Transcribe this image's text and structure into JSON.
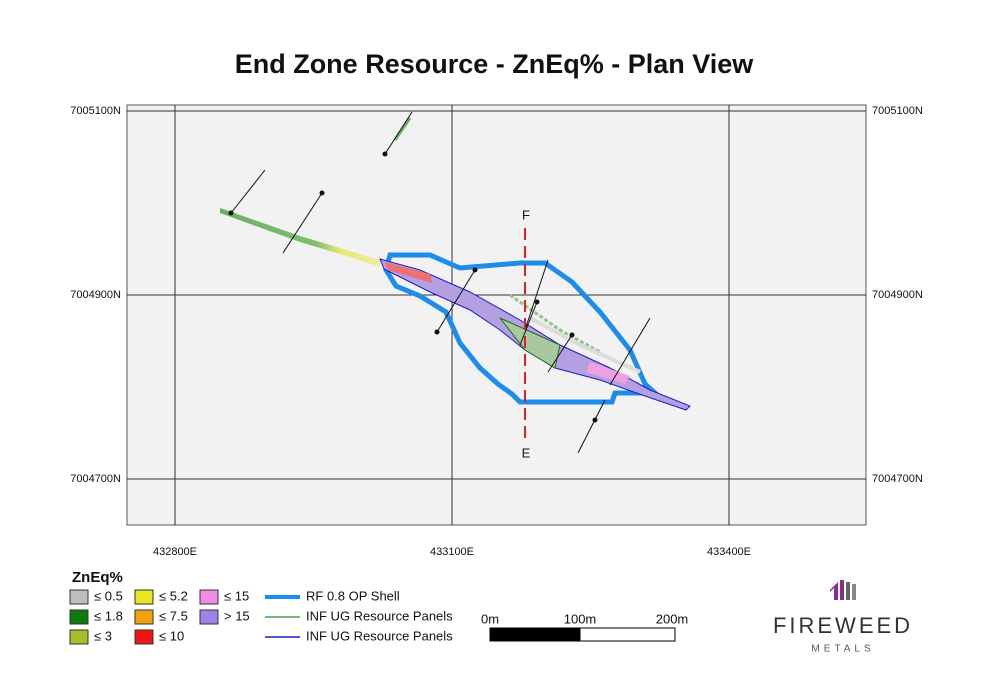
{
  "title": "End Zone Resource - ZnEq% - Plan View",
  "map": {
    "eastings": [
      "432800E",
      "433100E",
      "433400E"
    ],
    "northings": [
      "7005100N",
      "7004900N",
      "7004700N"
    ],
    "section_labels": [
      "F",
      "E"
    ]
  },
  "legend": {
    "title": "ZnEq%",
    "grade_bins": [
      {
        "label": "≤ 0.5",
        "color": "#bdbdbd"
      },
      {
        "label": "≤ 1.8",
        "color": "#0a7d0a"
      },
      {
        "label": "≤ 3",
        "color": "#a8be2c"
      },
      {
        "label": "≤ 5.2",
        "color": "#e8e61e"
      },
      {
        "label": "≤ 7.5",
        "color": "#f5a00a"
      },
      {
        "label": "≤ 10",
        "color": "#f01414"
      },
      {
        "label": "≤ 15",
        "color": "#f08ce6"
      },
      {
        "label": "> 15",
        "color": "#a082e6"
      }
    ],
    "lines": [
      {
        "label": "RF 0.8 OP Shell",
        "color": "#1e8ceb"
      },
      {
        "label": "INF UG Resource Panels",
        "color": "#46a046"
      },
      {
        "label": "INF UG Resource Panels",
        "color": "#1e1ec8"
      }
    ]
  },
  "scale_bar": {
    "labels": [
      "0m",
      "100m",
      "200m"
    ]
  },
  "logo": {
    "name": "FIREWEED",
    "subtitle": "METALS"
  }
}
